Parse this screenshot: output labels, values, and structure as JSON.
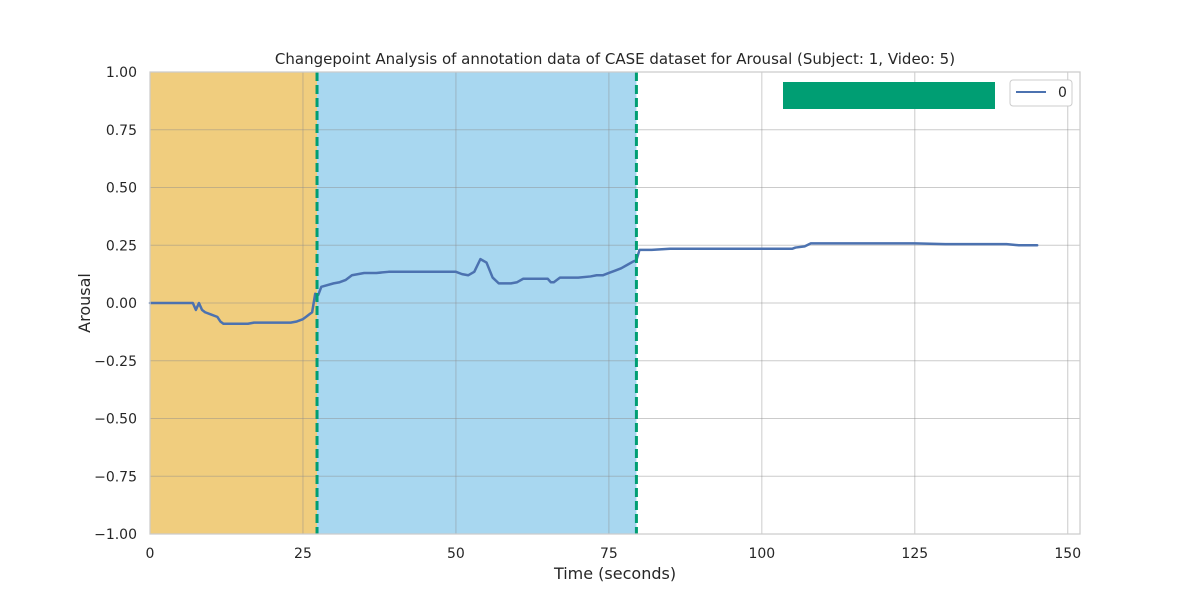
{
  "chart_data": {
    "type": "line",
    "title": "Changepoint Analysis of annotation data of CASE dataset for Arousal (Subject: 1, Video: 5)",
    "xlabel": "Time (seconds)",
    "ylabel": "Arousal",
    "xlim": [
      0,
      152
    ],
    "ylim": [
      -1.0,
      1.0
    ],
    "x_ticks": [
      0,
      25,
      50,
      75,
      100,
      125,
      150
    ],
    "x_tick_labels": [
      "0",
      "25",
      "50",
      "75",
      "100",
      "125",
      "150"
    ],
    "y_ticks": [
      -1.0,
      -0.75,
      -0.5,
      -0.25,
      0.0,
      0.25,
      0.5,
      0.75,
      1.0
    ],
    "y_tick_labels": [
      "−1.00",
      "−0.75",
      "−0.50",
      "−0.25",
      "0.00",
      "0.25",
      "0.50",
      "0.75",
      "1.00"
    ],
    "grid": true,
    "legend_placement": "top-right",
    "series": [
      {
        "name": "0",
        "color": "#4c72b0",
        "x": [
          0,
          6,
          7,
          7.5,
          8,
          8.5,
          9,
          10,
          11,
          11.5,
          12,
          14,
          16,
          17,
          20,
          23,
          24,
          25,
          25.5,
          26,
          26.5,
          27,
          27.5,
          28,
          30,
          31,
          32,
          33,
          35,
          37,
          39,
          42,
          45,
          48,
          50,
          51,
          52,
          53,
          54,
          55,
          56,
          57,
          58,
          59,
          60,
          61,
          62,
          64,
          65,
          65.5,
          66,
          67,
          68,
          70,
          72,
          73,
          74,
          75,
          76,
          77,
          78,
          79,
          79.5,
          80,
          82,
          85,
          90,
          95,
          100,
          105,
          105.5,
          107,
          108,
          110,
          115,
          120,
          125,
          130,
          135,
          140,
          142,
          145
        ],
        "values": [
          0.0,
          0.0,
          0.0,
          -0.03,
          0.0,
          -0.03,
          -0.04,
          -0.05,
          -0.06,
          -0.08,
          -0.09,
          -0.09,
          -0.09,
          -0.085,
          -0.085,
          -0.085,
          -0.08,
          -0.07,
          -0.06,
          -0.05,
          -0.04,
          0.04,
          0.035,
          0.07,
          0.085,
          0.09,
          0.1,
          0.12,
          0.13,
          0.13,
          0.135,
          0.135,
          0.135,
          0.135,
          0.135,
          0.125,
          0.12,
          0.135,
          0.19,
          0.175,
          0.11,
          0.085,
          0.085,
          0.085,
          0.09,
          0.105,
          0.105,
          0.105,
          0.105,
          0.09,
          0.09,
          0.11,
          0.11,
          0.11,
          0.115,
          0.12,
          0.12,
          0.13,
          0.14,
          0.15,
          0.165,
          0.18,
          0.185,
          0.23,
          0.23,
          0.235,
          0.235,
          0.235,
          0.235,
          0.235,
          0.24,
          0.245,
          0.258,
          0.258,
          0.258,
          0.258,
          0.258,
          0.255,
          0.255,
          0.255,
          0.25,
          0.25
        ]
      }
    ],
    "regions": [
      {
        "x_start": 0,
        "x_end": 27.3,
        "color": "#f0cd7e"
      },
      {
        "x_start": 27.3,
        "x_end": 79.5,
        "color": "#a8d7f0"
      }
    ],
    "changepoints": [
      {
        "x": 27.3,
        "color": "#009e73"
      },
      {
        "x": 79.5,
        "color": "#009e73"
      }
    ],
    "legend_patch_color": "#009e73"
  }
}
